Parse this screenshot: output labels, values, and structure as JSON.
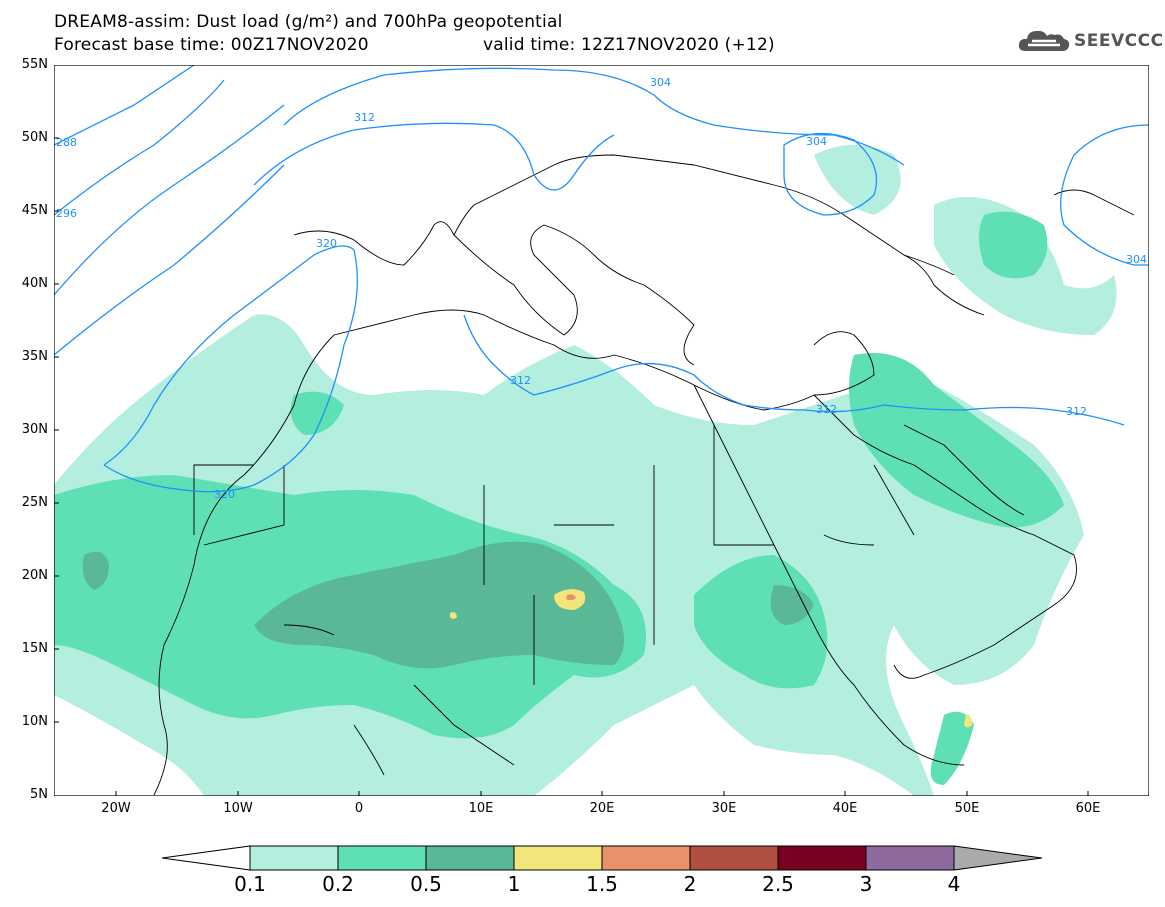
{
  "title": {
    "line1": "DREAM8-assim: Dust load (g/m²) and 700hPa geopotential",
    "line2_base": "Forecast base time: 00Z17NOV2020",
    "line2_valid": "valid time: 12Z17NOV2020 (+12)"
  },
  "logo": {
    "text": "SEEVCCC",
    "icon": "cloud-icon",
    "color": "#555555"
  },
  "axes": {
    "lat_labels": [
      "55N",
      "50N",
      "45N",
      "40N",
      "35N",
      "30N",
      "25N",
      "20N",
      "15N",
      "10N",
      "5N"
    ],
    "lon_labels": [
      "20W",
      "10W",
      "0",
      "10E",
      "20E",
      "30E",
      "40E",
      "50E",
      "60E"
    ]
  },
  "contours": {
    "color": "#1e90ff",
    "labels": [
      "304",
      "304",
      "312",
      "320",
      "320",
      "312",
      "312",
      "312",
      "288",
      "296",
      "304"
    ]
  },
  "colorbar": {
    "labels": [
      "0.1",
      "0.2",
      "0.5",
      "1",
      "1.5",
      "2",
      "2.5",
      "3",
      "4"
    ],
    "colors": [
      "#ffffff",
      "#b4eedf",
      "#5ee0b4",
      "#5ab896",
      "#f2e67a",
      "#e8916a",
      "#b05040",
      "#7a0020",
      "#8e6a9e",
      "#aaaaaa"
    ]
  },
  "dust_colors": {
    "c01": "#b4eedf",
    "c02": "#5ee0b4",
    "c05": "#5ab896",
    "c1": "#f2e67a",
    "c15": "#e8916a"
  }
}
